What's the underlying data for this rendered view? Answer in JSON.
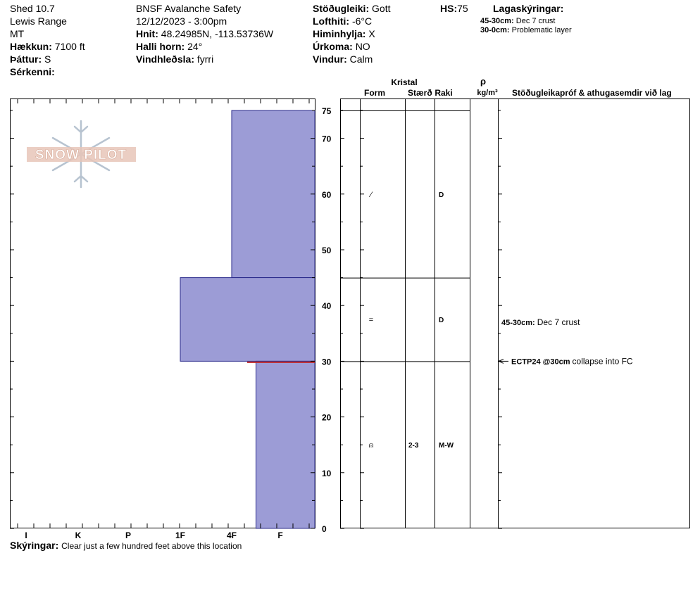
{
  "site": {
    "name": "Shed 10.7",
    "range": "Lewis Range",
    "state": "MT",
    "elevation_label": "Hækkun:",
    "elevation": "7100 ft",
    "aspect_label": "Þáttur:",
    "aspect": "S",
    "features_label": "Sérkenni:",
    "features": ""
  },
  "obs": {
    "org": "BNSF Avalanche Safety",
    "datetime": "12/12/2023 - 3:00pm",
    "coords_label": "Hnit:",
    "coords": "48.24985N, -113.53736W",
    "slope_label": "Halli horn:",
    "slope": "24°",
    "wind_loading_label": "Vindhleðsla:",
    "wind_loading": "fyrri"
  },
  "weather": {
    "stability_label": "Stöðugleiki:",
    "stability": "Gott",
    "air_temp_label": "Lofthiti:",
    "air_temp": "-6°C",
    "sky_label": "Himinhylja:",
    "sky": "X",
    "precip_label": "Úrkoma:",
    "precip": "NO",
    "wind_label": "Vindur:",
    "wind": "Calm",
    "hs_label": "HS:",
    "hs": "75"
  },
  "legend": {
    "title": "Lagaskýringar:",
    "items": [
      {
        "range": "45-30cm:",
        "text": "Dec 7 crust"
      },
      {
        "range": "30-0cm:",
        "text": "Problematic layer"
      }
    ]
  },
  "logo_text": "SNOW PILOT",
  "table_headers": {
    "crystal": "Kristal",
    "form": "Form",
    "size": "Stærð",
    "moisture": "Raki",
    "density_symbol": "ρ",
    "density_unit": "kg/m³",
    "comments": "Stöðugleikapróf & athugasemdir við lag"
  },
  "comments_label": "Skýringar:",
  "comments": "Clear just a few hundred feet above this location",
  "colors": {
    "layer_fill": "#9c9cd6",
    "layer_stroke": "#2a2a8a",
    "weak_layer": "#c0282a"
  },
  "chart_data": {
    "type": "bar",
    "y_unit": "cm",
    "ylim": [
      0,
      75
    ],
    "y_ticks": [
      0,
      10,
      20,
      30,
      40,
      50,
      60,
      70,
      75
    ],
    "hardness_scale": [
      "I",
      "K",
      "P",
      "1F",
      "4F",
      "F"
    ],
    "layers": [
      {
        "top": 75,
        "bottom": 45,
        "hardness": "4F",
        "form_symbol": "⁄",
        "size": "",
        "moisture": "D",
        "comment_range": "",
        "comment": ""
      },
      {
        "top": 45,
        "bottom": 30,
        "hardness": "1F",
        "form_symbol": "=",
        "size": "",
        "moisture": "D",
        "comment_range": "45-30cm:",
        "comment": "Dec 7 crust"
      },
      {
        "top": 30,
        "bottom": 0,
        "hardness": "4F-F",
        "form_symbol": "⍝",
        "size": "2-3",
        "moisture": "M-W",
        "comment_range": "",
        "comment": ""
      }
    ],
    "tests": [
      {
        "depth": 30,
        "result": "ECTP24 @30cm",
        "note": "collapse into FC"
      }
    ]
  }
}
